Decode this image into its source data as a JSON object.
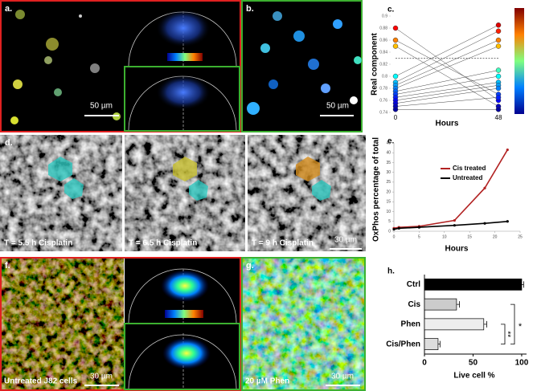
{
  "panels": {
    "a": {
      "label": "a.",
      "scale_bar": "50 µm"
    },
    "b": {
      "label": "b.",
      "scale_bar": "50 µm"
    },
    "d": {
      "label": "d.",
      "captions": [
        "T = 5.5 h Cisplatin",
        "T = 6.5 h Cisplatin",
        "T = 9 h Cisplatin"
      ],
      "scale_bar": "30 µm"
    },
    "f": {
      "label": "f.",
      "caption": "Untreated J82 cells",
      "scale_bar": "30 µm"
    },
    "g": {
      "label": "g.",
      "caption": "20 µM Phen",
      "scale_bar": "30 µm"
    }
  },
  "chart_data": [
    {
      "type": "slope",
      "label": "c.",
      "y_label": "Real component",
      "x_label": "Hours",
      "x": [
        0,
        48
      ],
      "xlim": [
        0,
        48
      ],
      "xticks": [
        0,
        48
      ],
      "ylim": [
        0.74,
        0.9
      ],
      "yticks": [
        0.74,
        0.76,
        0.78,
        0.8,
        0.82,
        0.84,
        0.86,
        0.88,
        0.9
      ],
      "hline": 0.83,
      "colormap": "jet",
      "series": [
        {
          "values": [
            0.88,
            0.76
          ]
        },
        {
          "values": [
            0.86,
            0.77
          ]
        },
        {
          "values": [
            0.85,
            0.75
          ]
        },
        {
          "values": [
            0.8,
            0.885
          ]
        },
        {
          "values": [
            0.79,
            0.875
          ]
        },
        {
          "values": [
            0.785,
            0.86
          ]
        },
        {
          "values": [
            0.78,
            0.85
          ]
        },
        {
          "values": [
            0.775,
            0.81
          ]
        },
        {
          "values": [
            0.77,
            0.8
          ]
        },
        {
          "values": [
            0.765,
            0.79
          ]
        },
        {
          "values": [
            0.76,
            0.785
          ]
        },
        {
          "values": [
            0.755,
            0.78
          ]
        },
        {
          "values": [
            0.75,
            0.765
          ]
        },
        {
          "values": [
            0.745,
            0.745
          ]
        }
      ]
    },
    {
      "type": "line",
      "label": "e.",
      "y_label": "OxPhos percentage of total",
      "x_label": "Hours",
      "xlim": [
        0,
        25
      ],
      "xticks": [
        0,
        5,
        10,
        15,
        20,
        25
      ],
      "ylim": [
        0,
        45
      ],
      "yticks": [
        0,
        5,
        10,
        15,
        20,
        25,
        30,
        35,
        40,
        45
      ],
      "legend": "upper-left",
      "series": [
        {
          "name": "Cis treated",
          "color": "#b22222",
          "x": [
            0,
            1,
            5,
            12,
            18,
            22.5
          ],
          "values": [
            1.5,
            2,
            2.5,
            5.5,
            22,
            41.5
          ]
        },
        {
          "name": "Untreated",
          "color": "#000000",
          "x": [
            0,
            1,
            5,
            12,
            18,
            22.5
          ],
          "values": [
            1,
            1.5,
            2,
            3,
            4,
            5
          ]
        }
      ]
    },
    {
      "type": "hbar",
      "label": "h.",
      "x_label": "Live cell %",
      "categories": [
        "Ctrl",
        "Cis",
        "Phen",
        "Cis/Phen"
      ],
      "values": [
        100,
        33,
        61,
        14
      ],
      "errors": [
        2,
        3,
        3,
        2
      ],
      "colors": [
        "#000000",
        "#cccccc",
        "#eeeeee",
        "#dddddd"
      ],
      "xlim": [
        0,
        105
      ],
      "xticks": [
        0,
        50,
        100
      ],
      "significance": [
        "*",
        "**"
      ]
    }
  ]
}
